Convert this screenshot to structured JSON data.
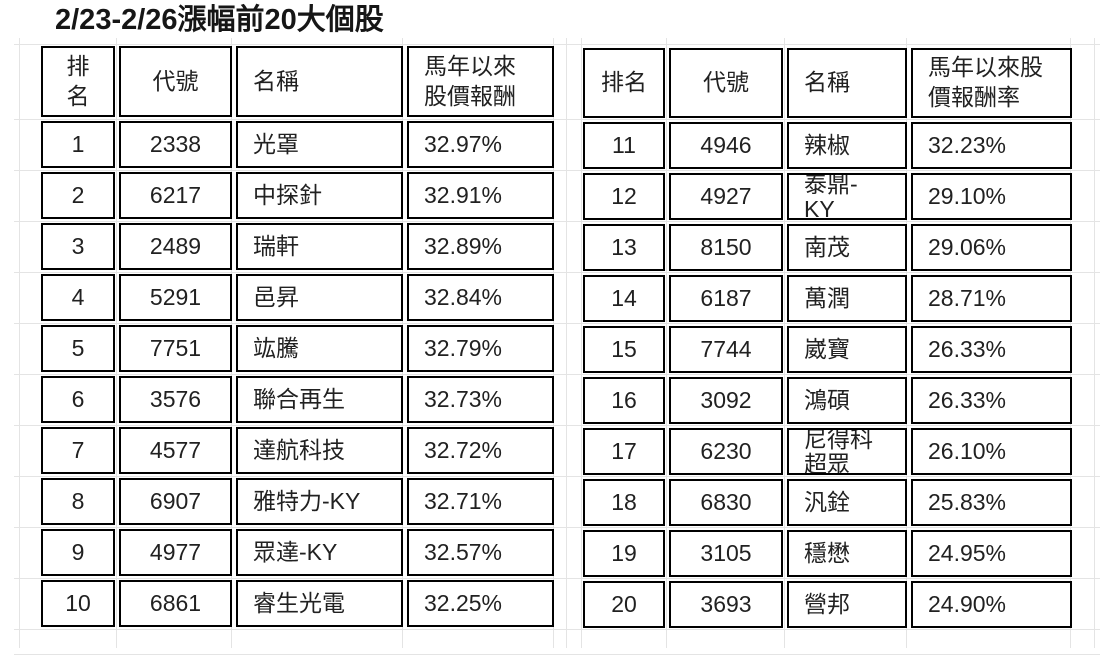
{
  "title": "2/23-2/26漲幅前20大個股",
  "tables": [
    {
      "headers": [
        "排\n名",
        "代號",
        "名稱",
        "馬年以來\n股價報酬"
      ],
      "rows": [
        [
          "1",
          "2338",
          "光罩",
          "32.97%"
        ],
        [
          "2",
          "6217",
          "中探針",
          "32.91%"
        ],
        [
          "3",
          "2489",
          "瑞軒",
          "32.89%"
        ],
        [
          "4",
          "5291",
          "邑昇",
          "32.84%"
        ],
        [
          "5",
          "7751",
          "竑騰",
          "32.79%"
        ],
        [
          "6",
          "3576",
          "聯合再生",
          "32.73%"
        ],
        [
          "7",
          "4577",
          "達航科技",
          "32.72%"
        ],
        [
          "8",
          "6907",
          "雅特力-KY",
          "32.71%"
        ],
        [
          "9",
          "4977",
          "眾達-KY",
          "32.57%"
        ],
        [
          "10",
          "6861",
          "睿生光電",
          "32.25%"
        ]
      ]
    },
    {
      "headers": [
        "排名",
        "代號",
        "名稱",
        "馬年以來股\n價報酬率"
      ],
      "rows": [
        [
          "11",
          "4946",
          "辣椒",
          "32.23%"
        ],
        [
          "12",
          "4927",
          "泰鼎-\nKY",
          "29.10%"
        ],
        [
          "13",
          "8150",
          "南茂",
          "29.06%"
        ],
        [
          "14",
          "6187",
          "萬潤",
          "28.71%"
        ],
        [
          "15",
          "7744",
          "崴寶",
          "26.33%"
        ],
        [
          "16",
          "3092",
          "鴻碩",
          "26.33%"
        ],
        [
          "17",
          "6230",
          "尼得科\n超眾",
          "26.10%"
        ],
        [
          "18",
          "6830",
          "汎銓",
          "25.83%"
        ],
        [
          "19",
          "3105",
          "穩懋",
          "24.95%"
        ],
        [
          "20",
          "3693",
          "營邦",
          "24.90%"
        ]
      ]
    }
  ]
}
